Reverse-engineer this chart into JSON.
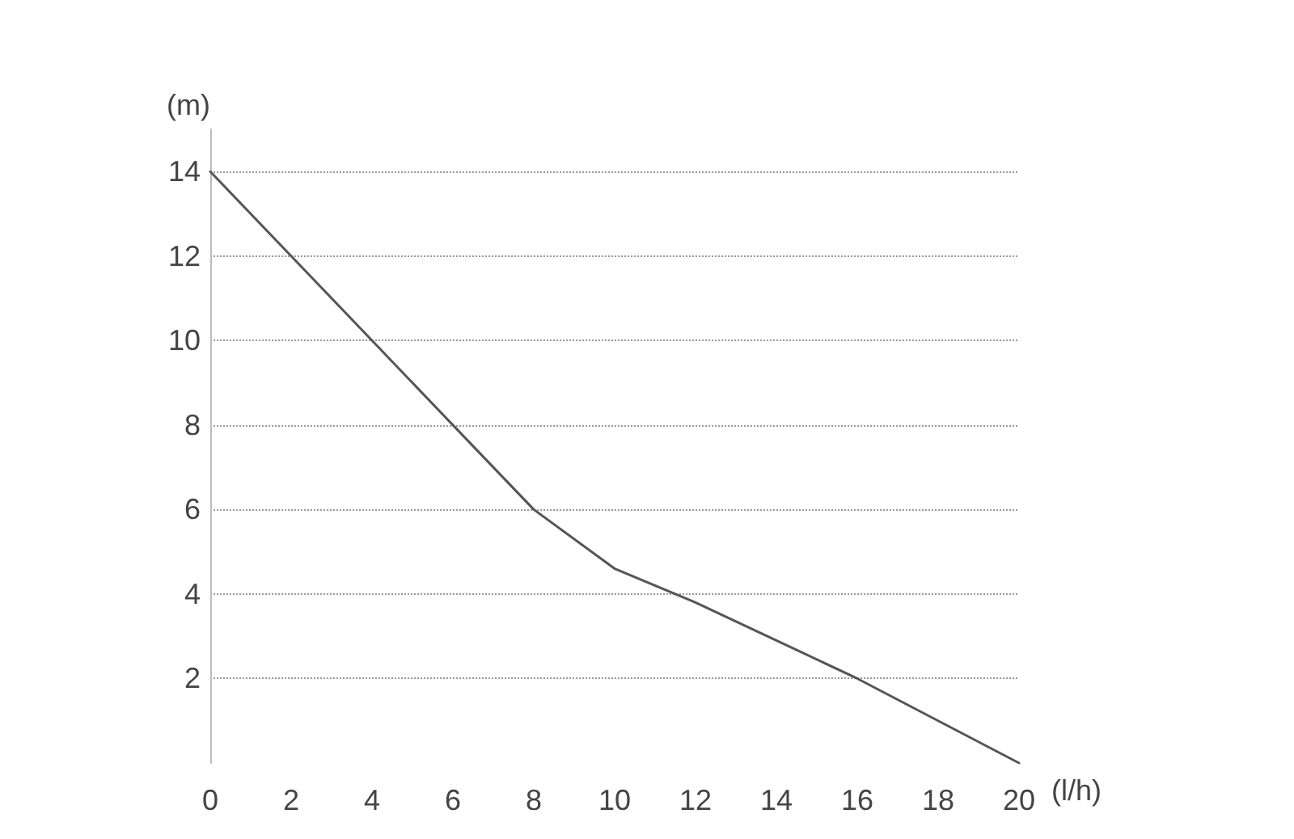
{
  "chart_data": {
    "type": "line",
    "xlabel": "(l/h)",
    "ylabel": "(m)",
    "x": [
      0,
      2,
      4,
      6,
      8,
      10,
      12,
      14,
      16,
      18,
      20
    ],
    "series": [
      {
        "color": "#555555",
        "values": [
          14,
          12,
          10,
          8,
          6,
          4.6,
          3.8,
          2.9,
          2,
          1,
          0
        ]
      }
    ],
    "xlim": [
      0,
      20
    ],
    "xticks": [
      0,
      2,
      4,
      6,
      8,
      10,
      12,
      14,
      16,
      18,
      20
    ],
    "ylim": [
      0,
      15
    ],
    "yticks": [
      2,
      4,
      6,
      8,
      10,
      12,
      14
    ],
    "grid": "y",
    "marker": "none",
    "line_style": "solid"
  }
}
